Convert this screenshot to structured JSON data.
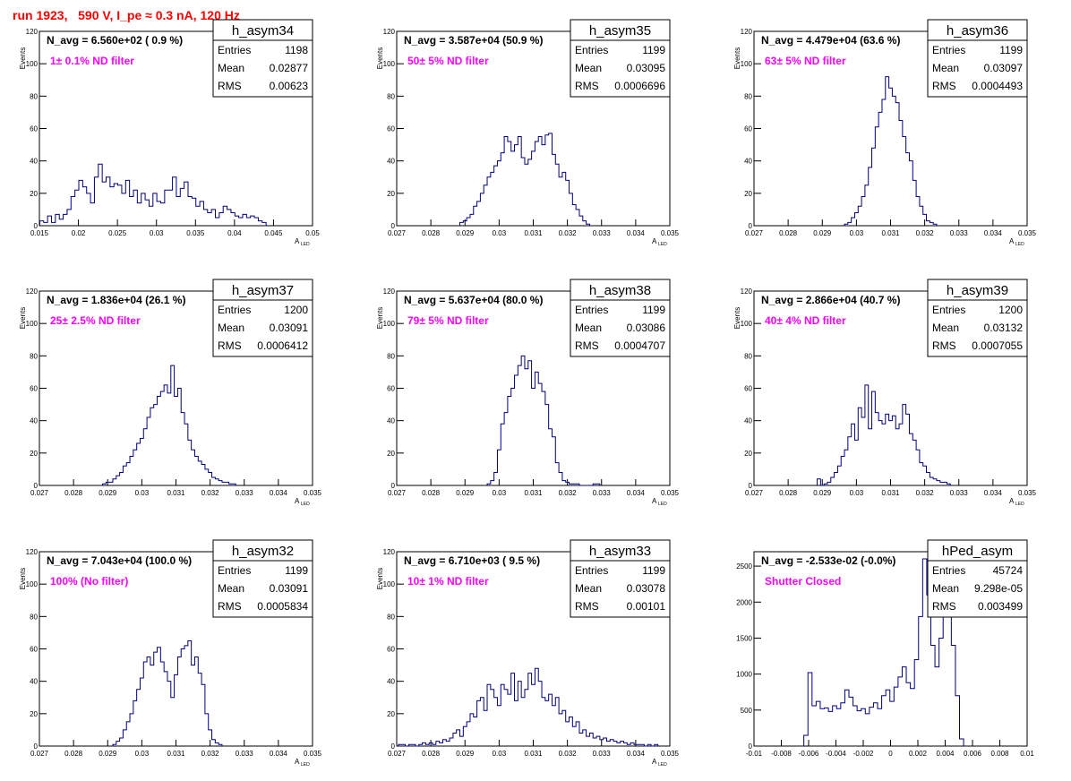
{
  "header": {
    "title": "run 1923,   590 V, I_pe ≈ 0.3 nA, 120 Hz"
  },
  "colors": {
    "line": "#000080",
    "label": "#ff00ff",
    "title": "#ff0000"
  },
  "chart_data": [
    {
      "type": "bar",
      "name": "h_asym34",
      "label": "N_avg = 6.560e+02 ( 0.9 %)",
      "filter_label": "1± 0.1% ND filter",
      "stats": [
        [
          "Entries",
          "1198"
        ],
        [
          "Mean",
          "0.02877"
        ],
        [
          "RMS",
          "0.00623"
        ]
      ],
      "xlabel": "A",
      "xlabel_sub": "LED",
      "ylabel": "Events",
      "xlim": [
        0.015,
        0.05
      ],
      "ylim": [
        0,
        120
      ],
      "xticks": [
        "0.015",
        "0.02",
        "0.025",
        "0.03",
        "0.035",
        "0.04",
        "0.045",
        "0.05"
      ],
      "yticks": [
        "0",
        "20",
        "40",
        "60",
        "80",
        "100",
        "120"
      ],
      "x": [
        0.0153,
        0.0158,
        0.0163,
        0.0168,
        0.0173,
        0.0178,
        0.0183,
        0.0188,
        0.0193,
        0.0198,
        0.0203,
        0.0208,
        0.0213,
        0.0218,
        0.0223,
        0.0228,
        0.0233,
        0.0238,
        0.0243,
        0.0248,
        0.0253,
        0.0258,
        0.0263,
        0.0268,
        0.0273,
        0.0278,
        0.0283,
        0.0288,
        0.0293,
        0.0298,
        0.0303,
        0.0308,
        0.0313,
        0.0318,
        0.0323,
        0.0328,
        0.0333,
        0.0338,
        0.0343,
        0.0348,
        0.0353,
        0.0358,
        0.0363,
        0.0368,
        0.0373,
        0.0378,
        0.0383,
        0.0388,
        0.0393,
        0.0398,
        0.0403,
        0.0408,
        0.0413,
        0.0418,
        0.0423,
        0.0428,
        0.0433,
        0.0438
      ],
      "values": [
        3,
        2,
        6,
        2,
        7,
        4,
        7,
        10,
        18,
        22,
        28,
        24,
        20,
        14,
        30,
        38,
        27,
        30,
        24,
        26,
        25,
        20,
        28,
        18,
        22,
        14,
        20,
        16,
        12,
        20,
        15,
        14,
        22,
        22,
        30,
        18,
        23,
        27,
        18,
        17,
        12,
        15,
        10,
        8,
        10,
        5,
        8,
        12,
        10,
        8,
        6,
        5,
        7,
        5,
        6,
        5,
        3,
        2
      ]
    },
    {
      "type": "bar",
      "name": "h_asym35",
      "label": "N_avg = 3.587e+04 (50.9 %)",
      "filter_label": "50± 5% ND filter",
      "stats": [
        [
          "Entries",
          "1199"
        ],
        [
          "Mean",
          "0.03095"
        ],
        [
          "RMS",
          "0.0006696"
        ]
      ],
      "xlabel": "A",
      "xlabel_sub": "LED",
      "ylabel": "Events",
      "xlim": [
        0.027,
        0.035
      ],
      "ylim": [
        0,
        120
      ],
      "xticks": [
        "0.027",
        "0.028",
        "0.029",
        "0.03",
        "0.031",
        "0.032",
        "0.033",
        "0.034",
        "0.035"
      ],
      "yticks": [
        "0",
        "20",
        "40",
        "60",
        "80",
        "100",
        "120"
      ],
      "x": [
        0.0289,
        0.029,
        0.0291,
        0.0292,
        0.0293,
        0.0294,
        0.0295,
        0.0296,
        0.0297,
        0.0298,
        0.0299,
        0.03,
        0.0301,
        0.0302,
        0.0303,
        0.0304,
        0.0305,
        0.0306,
        0.0307,
        0.0308,
        0.0309,
        0.031,
        0.0311,
        0.0312,
        0.0313,
        0.0314,
        0.0315,
        0.0316,
        0.0317,
        0.0318,
        0.0319,
        0.032,
        0.0321,
        0.0322,
        0.0323,
        0.0324,
        0.0325,
        0.0326
      ],
      "values": [
        2,
        3,
        5,
        7,
        12,
        15,
        20,
        25,
        30,
        33,
        37,
        40,
        45,
        55,
        52,
        46,
        50,
        55,
        42,
        38,
        41,
        46,
        52,
        55,
        50,
        56,
        57,
        44,
        38,
        30,
        33,
        28,
        20,
        13,
        10,
        6,
        3,
        1
      ]
    },
    {
      "type": "bar",
      "name": "h_asym36",
      "label": "N_avg = 4.479e+04 (63.6 %)",
      "filter_label": "63± 5% ND filter",
      "stats": [
        [
          "Entries",
          "1199"
        ],
        [
          "Mean",
          "0.03097"
        ],
        [
          "RMS",
          "0.0004493"
        ]
      ],
      "xlabel": "A",
      "xlabel_sub": "LED",
      "ylabel": "Events",
      "xlim": [
        0.027,
        0.035
      ],
      "ylim": [
        0,
        120
      ],
      "xticks": [
        "0.027",
        "0.028",
        "0.029",
        "0.03",
        "0.031",
        "0.032",
        "0.033",
        "0.034",
        "0.035"
      ],
      "yticks": [
        "0",
        "20",
        "40",
        "60",
        "80",
        "100",
        "120"
      ],
      "x": [
        0.0297,
        0.0298,
        0.0299,
        0.03,
        0.0301,
        0.0302,
        0.0303,
        0.0304,
        0.0305,
        0.0306,
        0.0307,
        0.0308,
        0.0309,
        0.031,
        0.0311,
        0.0312,
        0.0313,
        0.0314,
        0.0315,
        0.0316,
        0.0317,
        0.0318,
        0.0319,
        0.032,
        0.0321,
        0.0322,
        0.0323
      ],
      "values": [
        1,
        2,
        5,
        8,
        12,
        18,
        25,
        36,
        48,
        61,
        70,
        78,
        92,
        85,
        80,
        76,
        65,
        55,
        45,
        40,
        28,
        18,
        12,
        7,
        3,
        2,
        1
      ]
    },
    {
      "type": "bar",
      "name": "h_asym37",
      "label": "N_avg = 1.836e+04 (26.1 %)",
      "filter_label": "25± 2.5% ND filter",
      "stats": [
        [
          "Entries",
          "1200"
        ],
        [
          "Mean",
          "0.03091"
        ],
        [
          "RMS",
          "0.0006412"
        ]
      ],
      "xlabel": "A",
      "xlabel_sub": "LED",
      "ylabel": "Events",
      "xlim": [
        0.027,
        0.035
      ],
      "ylim": [
        0,
        120
      ],
      "xticks": [
        "0.027",
        "0.028",
        "0.029",
        "0.03",
        "0.031",
        "0.032",
        "0.033",
        "0.034",
        "0.035"
      ],
      "yticks": [
        "0",
        "20",
        "40",
        "60",
        "80",
        "100",
        "120"
      ],
      "x": [
        0.0289,
        0.029,
        0.0291,
        0.0292,
        0.0293,
        0.0294,
        0.0295,
        0.0296,
        0.0297,
        0.0298,
        0.0299,
        0.03,
        0.0301,
        0.0302,
        0.0303,
        0.0304,
        0.0305,
        0.0306,
        0.0307,
        0.0308,
        0.0309,
        0.031,
        0.0311,
        0.0312,
        0.0313,
        0.0314,
        0.0315,
        0.0316,
        0.0317,
        0.0318,
        0.0319,
        0.032,
        0.0321,
        0.0322,
        0.0323,
        0.0324,
        0.0325,
        0.0326,
        0.0327
      ],
      "values": [
        1,
        2,
        2,
        4,
        6,
        8,
        12,
        14,
        18,
        22,
        26,
        29,
        35,
        42,
        48,
        50,
        55,
        58,
        62,
        57,
        74,
        55,
        60,
        45,
        38,
        28,
        22,
        18,
        15,
        13,
        10,
        8,
        5,
        4,
        3,
        2,
        2,
        1,
        1
      ]
    },
    {
      "type": "bar",
      "name": "h_asym38",
      "label": "N_avg = 5.637e+04 (80.0 %)",
      "filter_label": "79± 5% ND filter",
      "stats": [
        [
          "Entries",
          "1199"
        ],
        [
          "Mean",
          "0.03086"
        ],
        [
          "RMS",
          "0.0004707"
        ]
      ],
      "xlabel": "A",
      "xlabel_sub": "LED",
      "ylabel": "Events",
      "xlim": [
        0.027,
        0.035
      ],
      "ylim": [
        0,
        120
      ],
      "xticks": [
        "0.027",
        "0.028",
        "0.029",
        "0.03",
        "0.031",
        "0.032",
        "0.033",
        "0.034",
        "0.035"
      ],
      "yticks": [
        "0",
        "20",
        "40",
        "60",
        "80",
        "100",
        "120"
      ],
      "x": [
        0.0297,
        0.0298,
        0.0299,
        0.03,
        0.0301,
        0.0302,
        0.0303,
        0.0304,
        0.0305,
        0.0306,
        0.0307,
        0.0308,
        0.0309,
        0.031,
        0.0311,
        0.0312,
        0.0313,
        0.0314,
        0.0315,
        0.0316,
        0.0317,
        0.0318,
        0.0319,
        0.032,
        0.0321,
        0.0322,
        0.0323,
        0.0324,
        0.0325,
        0.0326,
        0.0327,
        0.0328,
        0.0329
      ],
      "values": [
        1,
        3,
        8,
        22,
        38,
        45,
        55,
        60,
        68,
        74,
        80,
        72,
        77,
        60,
        70,
        63,
        58,
        50,
        35,
        30,
        14,
        8,
        3,
        2,
        1,
        1,
        1,
        0,
        0,
        0,
        0,
        1,
        1
      ]
    },
    {
      "type": "bar",
      "name": "h_asym39",
      "label": "N_avg = 2.866e+04 (40.7 %)",
      "filter_label": "40± 4% ND filter",
      "stats": [
        [
          "Entries",
          "1200"
        ],
        [
          "Mean",
          "0.03132"
        ],
        [
          "RMS",
          "0.0007055"
        ]
      ],
      "xlabel": "A",
      "xlabel_sub": "LED",
      "ylabel": "Events",
      "xlim": [
        0.027,
        0.035
      ],
      "ylim": [
        0,
        120
      ],
      "xticks": [
        "0.027",
        "0.028",
        "0.029",
        "0.03",
        "0.031",
        "0.032",
        "0.033",
        "0.034",
        "0.035"
      ],
      "yticks": [
        "0",
        "20",
        "40",
        "60",
        "80",
        "100",
        "120"
      ],
      "x": [
        0.0289,
        0.029,
        0.0291,
        0.0292,
        0.0293,
        0.0294,
        0.0295,
        0.0296,
        0.0297,
        0.0298,
        0.0299,
        0.03,
        0.0301,
        0.0302,
        0.0303,
        0.0304,
        0.0305,
        0.0306,
        0.0307,
        0.0308,
        0.0309,
        0.031,
        0.0311,
        0.0312,
        0.0313,
        0.0314,
        0.0315,
        0.0316,
        0.0317,
        0.0318,
        0.0319,
        0.032,
        0.0321,
        0.0322,
        0.0323,
        0.0324,
        0.0325,
        0.0326,
        0.0327
      ],
      "values": [
        4,
        0,
        1,
        2,
        5,
        8,
        12,
        18,
        22,
        30,
        38,
        28,
        48,
        42,
        62,
        35,
        58,
        45,
        40,
        38,
        44,
        40,
        43,
        35,
        38,
        50,
        44,
        32,
        28,
        22,
        14,
        12,
        8,
        5,
        4,
        3,
        2,
        2,
        1
      ]
    },
    {
      "type": "bar",
      "name": "h_asym32",
      "label": "N_avg = 7.043e+04 (100.0 %)",
      "filter_label": "100% (No filter)",
      "stats": [
        [
          "Entries",
          "1199"
        ],
        [
          "Mean",
          "0.03091"
        ],
        [
          "RMS",
          "0.0005834"
        ]
      ],
      "xlabel": "A",
      "xlabel_sub": "LED",
      "ylabel": "Events",
      "xlim": [
        0.027,
        0.035
      ],
      "ylim": [
        0,
        120
      ],
      "xticks": [
        "0.027",
        "0.028",
        "0.029",
        "0.03",
        "0.031",
        "0.032",
        "0.033",
        "0.034",
        "0.035"
      ],
      "yticks": [
        "0",
        "20",
        "40",
        "60",
        "80",
        "100",
        "120"
      ],
      "x": [
        0.0292,
        0.0293,
        0.0294,
        0.0295,
        0.0296,
        0.0297,
        0.0298,
        0.0299,
        0.03,
        0.0301,
        0.0302,
        0.0303,
        0.0304,
        0.0305,
        0.0306,
        0.0307,
        0.0308,
        0.0309,
        0.031,
        0.0311,
        0.0312,
        0.0313,
        0.0314,
        0.0315,
        0.0316,
        0.0317,
        0.0318,
        0.0319,
        0.032,
        0.0321,
        0.0322,
        0.0323
      ],
      "values": [
        1,
        3,
        5,
        10,
        15,
        20,
        28,
        35,
        42,
        52,
        55,
        50,
        58,
        61,
        52,
        46,
        40,
        30,
        44,
        55,
        60,
        62,
        65,
        50,
        55,
        45,
        38,
        20,
        10,
        4,
        2,
        1
      ]
    },
    {
      "type": "bar",
      "name": "h_asym33",
      "label": "N_avg = 6.710e+03 ( 9.5 %)",
      "filter_label": "10± 1% ND filter",
      "stats": [
        [
          "Entries",
          "1199"
        ],
        [
          "Mean",
          "0.03078"
        ],
        [
          "RMS",
          "0.00101"
        ]
      ],
      "xlabel": "A",
      "xlabel_sub": "LED",
      "ylabel": "Events",
      "xlim": [
        0.027,
        0.035
      ],
      "ylim": [
        0,
        120
      ],
      "xticks": [
        "0.027",
        "0.028",
        "0.029",
        "0.03",
        "0.031",
        "0.032",
        "0.033",
        "0.034",
        "0.035"
      ],
      "yticks": [
        "0",
        "20",
        "40",
        "60",
        "80",
        "100",
        "120"
      ],
      "x": [
        0.0271,
        0.0272,
        0.0273,
        0.0274,
        0.0275,
        0.0276,
        0.0277,
        0.0278,
        0.0279,
        0.028,
        0.0281,
        0.0282,
        0.0283,
        0.0284,
        0.0285,
        0.0286,
        0.0287,
        0.0288,
        0.0289,
        0.029,
        0.0291,
        0.0292,
        0.0293,
        0.0294,
        0.0295,
        0.0296,
        0.0297,
        0.0298,
        0.0299,
        0.03,
        0.0301,
        0.0302,
        0.0303,
        0.0304,
        0.0305,
        0.0306,
        0.0307,
        0.0308,
        0.0309,
        0.031,
        0.0311,
        0.0312,
        0.0313,
        0.0314,
        0.0315,
        0.0316,
        0.0317,
        0.0318,
        0.0319,
        0.032,
        0.0321,
        0.0322,
        0.0323,
        0.0324,
        0.0325,
        0.0326,
        0.0327,
        0.0328,
        0.0329,
        0.033,
        0.0331,
        0.0332,
        0.0333,
        0.0334,
        0.0335,
        0.0336,
        0.0337,
        0.0338,
        0.0339,
        0.034,
        0.0341,
        0.0342,
        0.0343,
        0.0344,
        0.0345,
        0.0346
      ],
      "values": [
        1,
        1,
        0,
        1,
        1,
        0,
        1,
        2,
        1,
        2,
        1,
        3,
        2,
        4,
        3,
        5,
        8,
        10,
        6,
        12,
        15,
        20,
        18,
        28,
        30,
        22,
        38,
        35,
        30,
        25,
        38,
        35,
        32,
        45,
        28,
        40,
        30,
        35,
        45,
        38,
        48,
        40,
        30,
        28,
        32,
        25,
        30,
        20,
        22,
        15,
        18,
        12,
        15,
        8,
        10,
        6,
        8,
        5,
        6,
        4,
        5,
        3,
        4,
        3,
        2,
        3,
        2,
        1,
        2,
        1,
        1,
        1,
        0,
        1,
        0,
        1
      ]
    },
    {
      "type": "bar",
      "name": "hPed_asym",
      "label": "N_avg = -2.533e-02 (-0.0%)",
      "filter_label": "Shutter Closed",
      "stats": [
        [
          "Entries",
          "45724"
        ],
        [
          "Mean",
          "9.298e-05"
        ],
        [
          "RMS",
          "0.003499"
        ]
      ],
      "xlabel": "",
      "xlabel_sub": "",
      "ylabel": "",
      "xlim": [
        -0.01,
        0.01
      ],
      "ylim": [
        0,
        2700
      ],
      "xticks": [
        "-0.01",
        "-0.008",
        "-0.006",
        "-0.004",
        "-0.002",
        "0",
        "0.002",
        "0.004",
        "0.006",
        "0.008",
        "0.01"
      ],
      "yticks": [
        "0",
        "500",
        "1000",
        "1500",
        "2000",
        "2500"
      ],
      "x": [
        -0.0062,
        -0.0059,
        -0.0056,
        -0.0053,
        -0.005,
        -0.0047,
        -0.0044,
        -0.0041,
        -0.0038,
        -0.0035,
        -0.0032,
        -0.0029,
        -0.0026,
        -0.0023,
        -0.002,
        -0.0017,
        -0.0014,
        -0.0011,
        -0.0008,
        -0.0005,
        -0.0002,
        0.0001,
        0.0004,
        0.0007,
        0.001,
        0.0013,
        0.0016,
        0.0019,
        0.0022,
        0.0025,
        0.0028,
        0.0031,
        0.0034,
        0.0037,
        0.004,
        0.0043,
        0.0046,
        0.0049,
        0.0052
      ],
      "values": [
        150,
        1020,
        560,
        620,
        520,
        530,
        480,
        560,
        520,
        600,
        780,
        680,
        560,
        490,
        520,
        450,
        540,
        600,
        520,
        700,
        780,
        620,
        820,
        960,
        1100,
        880,
        800,
        1200,
        1800,
        2600,
        2100,
        1400,
        1100,
        1500,
        1800,
        2000,
        1400,
        700,
        100
      ]
    }
  ]
}
